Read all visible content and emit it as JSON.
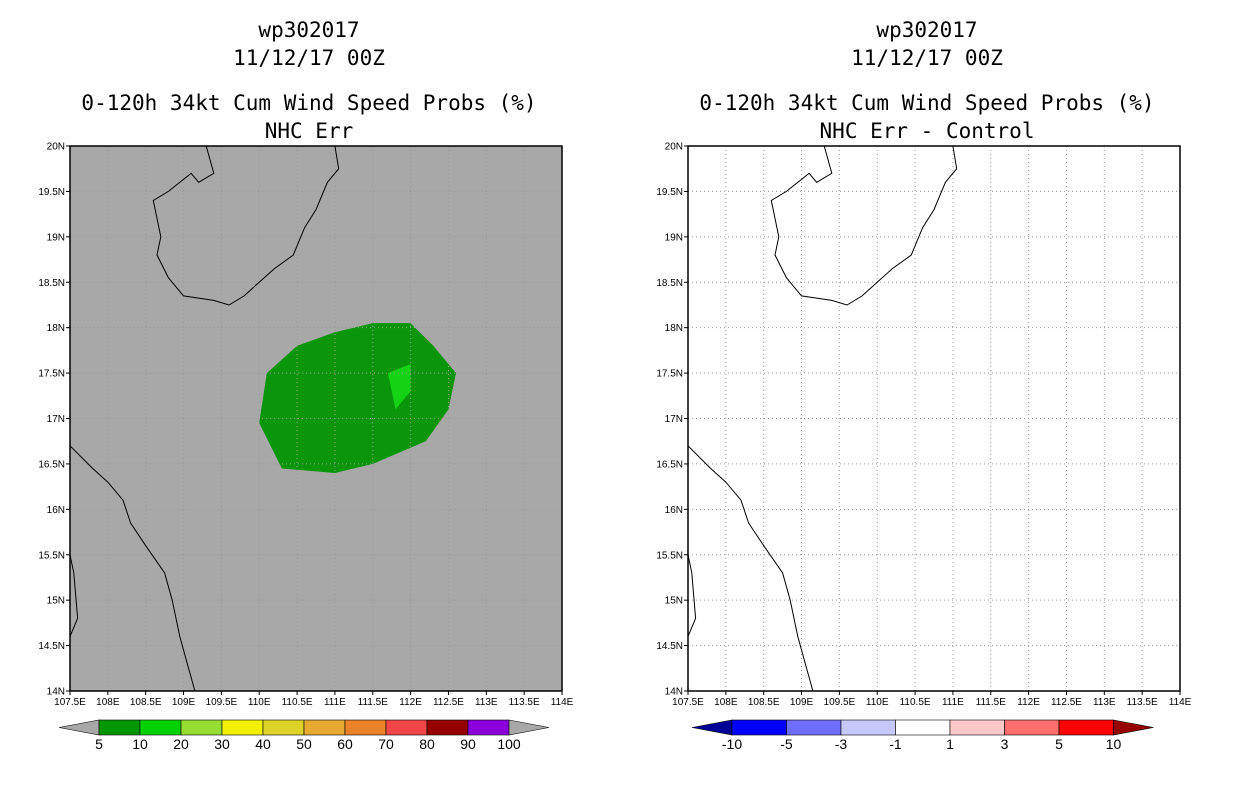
{
  "colors": {
    "land_panel_bg": "#a8a8a8",
    "coast": "#000000",
    "grid": "#999999",
    "prob_5_10": "#0a960a",
    "prob_10_20": "#14d214"
  },
  "panels": [
    {
      "id": "left",
      "title_line1": "wp302017",
      "title_line2": "11/12/17 00Z",
      "title_line3": "0-120h 34kt Cum Wind Speed Probs (%)",
      "title_line4": "NHC Err",
      "background": "#a8a8a8",
      "colorbar": {
        "colors": [
          "#009600",
          "#00d200",
          "#96dc32",
          "#f0f000",
          "#dcd228",
          "#e6aa32",
          "#eb8228",
          "#f04646",
          "#960000",
          "#8c00dc"
        ],
        "labels": [
          "5",
          "10",
          "20",
          "30",
          "40",
          "50",
          "60",
          "70",
          "80",
          "90",
          "100"
        ],
        "under_color": "#a8a8a8",
        "over_color": "#a8a8a8"
      }
    },
    {
      "id": "right",
      "title_line1": "wp302017",
      "title_line2": "11/12/17 00Z",
      "title_line3": "0-120h 34kt Cum Wind Speed Probs (%)",
      "title_line4": "NHC Err - Control",
      "background": "#ffffff",
      "colorbar": {
        "colors": [
          "#0000ff",
          "#6e6eff",
          "#c8c8ff",
          "#ffffff",
          "#ffc8c8",
          "#ff6e6e",
          "#ff0000"
        ],
        "labels": [
          "-10",
          "-5",
          "-3",
          "-1",
          "1",
          "3",
          "5",
          "10"
        ],
        "under_color": "#000096",
        "over_color": "#960000"
      }
    }
  ],
  "map": {
    "lon_min": 107.5,
    "lon_max": 114,
    "lat_min": 14,
    "lat_max": 20,
    "x_ticks": [
      "107.5E",
      "108E",
      "108.5E",
      "109E",
      "109.5E",
      "110E",
      "110.5E",
      "111E",
      "111.5E",
      "112E",
      "112.5E",
      "113E",
      "113.5E",
      "114E"
    ],
    "y_ticks": [
      "20N",
      "19.5N",
      "19N",
      "18.5N",
      "18N",
      "17.5N",
      "17N",
      "16.5N",
      "16N",
      "15.5N",
      "15N",
      "14.5N",
      "14N"
    ]
  },
  "prob_contours": {
    "outer_5pct": [
      [
        110.1,
        17.5
      ],
      [
        110.5,
        17.8
      ],
      [
        111,
        17.95
      ],
      [
        111.5,
        18.05
      ],
      [
        112,
        18.05
      ],
      [
        112.3,
        17.8
      ],
      [
        112.6,
        17.5
      ],
      [
        112.5,
        17.1
      ],
      [
        112.2,
        16.75
      ],
      [
        111.5,
        16.5
      ],
      [
        111,
        16.4
      ],
      [
        110.3,
        16.45
      ],
      [
        110,
        16.95
      ]
    ],
    "inner_10pct": [
      [
        111.7,
        17.5
      ],
      [
        112,
        17.6
      ],
      [
        112,
        17.3
      ],
      [
        111.8,
        17.1
      ]
    ]
  },
  "coastlines": {
    "hainan": [
      [
        109.3,
        20
      ],
      [
        109.4,
        19.7
      ],
      [
        109.2,
        19.6
      ],
      [
        109.1,
        19.7
      ],
      [
        108.8,
        19.5
      ],
      [
        108.6,
        19.4
      ],
      [
        108.7,
        19.0
      ],
      [
        108.65,
        18.8
      ],
      [
        108.8,
        18.55
      ],
      [
        109.0,
        18.35
      ],
      [
        109.4,
        18.3
      ],
      [
        109.6,
        18.25
      ],
      [
        109.8,
        18.35
      ],
      [
        110.0,
        18.5
      ],
      [
        110.2,
        18.65
      ],
      [
        110.45,
        18.8
      ],
      [
        110.6,
        19.1
      ],
      [
        110.75,
        19.3
      ],
      [
        110.9,
        19.6
      ],
      [
        111.05,
        19.75
      ],
      [
        111.0,
        20
      ]
    ],
    "vietnam": [
      [
        107.5,
        16.7
      ],
      [
        107.8,
        16.45
      ],
      [
        108.0,
        16.3
      ],
      [
        108.2,
        16.1
      ],
      [
        108.3,
        15.85
      ],
      [
        108.5,
        15.6
      ],
      [
        108.75,
        15.3
      ],
      [
        108.85,
        15.0
      ],
      [
        108.95,
        14.6
      ],
      [
        109.05,
        14.3
      ],
      [
        109.15,
        14.0
      ]
    ],
    "laos_cambodia": [
      [
        107.5,
        15.5
      ],
      [
        107.55,
        15.3
      ],
      [
        107.6,
        14.8
      ],
      [
        107.5,
        14.6
      ]
    ]
  }
}
